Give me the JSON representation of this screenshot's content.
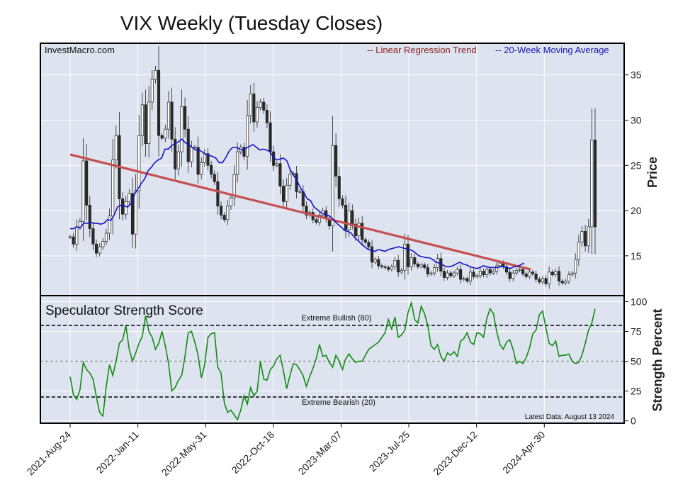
{
  "title": "VIX Weekly (Tuesday Closes)",
  "source": "InvestMacro.com",
  "legend": {
    "regression": "-- Linear Regression Trend",
    "ma": "-- 20-Week Moving Average"
  },
  "colors": {
    "panel_bg": "#dde3ef",
    "grid": "#ffffff",
    "regression": "#c65050",
    "ma": "#1414c8",
    "strength": "#138a13",
    "candle_down": "#2a2a2a",
    "candle_up": "#ffffff",
    "legend_regression": "#8b1a1a",
    "legend_ma": "#1414b4"
  },
  "chart_data": [
    {
      "type": "candlestick",
      "ylabel": "Price",
      "ylim": [
        10.6,
        38.5
      ],
      "yticks": [
        15,
        20,
        25,
        30,
        35
      ],
      "x_tick_labels": [
        "2021-Aug-24",
        "2022-Jan-11",
        "2022-May-31",
        "2022-Oct-18",
        "2023-Mar-07",
        "2023-Jul-25",
        "2023-Dec-12",
        "2024-Apr-30"
      ],
      "x_tick_weeks": [
        0,
        20,
        40,
        60,
        80,
        100,
        120,
        140
      ],
      "weeks_total": 156,
      "closes": [
        17.1,
        16.3,
        18.2,
        18.8,
        25.5,
        20.6,
        18.0,
        16.3,
        15.3,
        16.0,
        16.6,
        17.5,
        19.4,
        25.6,
        28.3,
        21.3,
        19.6,
        21.0,
        21.9,
        17.4,
        22.2,
        28.3,
        31.7,
        27.4,
        32.0,
        34.5,
        35.5,
        28.3,
        28.0,
        29.0,
        32.0,
        27.9,
        24.6,
        26.5,
        31.5,
        29.0,
        25.4,
        27.0,
        27.0,
        24.0,
        25.3,
        26.3,
        25.0,
        24.0,
        23.2,
        20.5,
        19.5,
        19.0,
        20.5,
        21.4,
        24.0,
        26.5,
        27.0,
        26.0,
        30.5,
        32.9,
        29.8,
        31.4,
        32.0,
        31.1,
        29.7,
        26.5,
        25.0,
        25.2,
        22.7,
        21.0,
        22.8,
        24.0,
        24.1,
        22.1,
        22.1,
        20.5,
        19.5,
        19.8,
        19.0,
        18.7,
        19.5,
        20.0,
        19.1,
        18.3,
        27.2,
        23.8,
        21.3,
        20.6,
        17.9,
        20.0,
        18.5,
        17.2,
        18.6,
        16.8,
        16.5,
        16.0,
        14.3,
        14.6,
        13.9,
        13.8,
        13.7,
        13.5,
        13.8,
        14.5,
        13.2,
        13.4,
        16.3,
        13.8,
        14.8,
        14.1,
        13.8,
        14.0,
        13.7,
        13.0,
        13.1,
        13.7,
        14.7,
        13.3,
        12.6,
        13.1,
        12.8,
        13.1,
        13.5,
        12.4,
        12.5,
        12.2,
        13.2,
        12.7,
        12.8,
        13.3,
        12.9,
        13.5,
        13.1,
        13.3,
        13.9,
        14.2,
        13.8,
        13.2,
        12.5,
        13.1,
        13.4,
        13.5,
        13.0,
        12.7,
        13.2,
        13.0,
        12.4,
        12.1,
        12.5,
        11.9,
        13.2,
        12.9,
        13.3,
        12.2,
        12.0,
        12.2,
        12.9,
        13.1,
        14.6,
        16.5,
        17.7,
        16.1,
        18.2,
        27.8,
        18.2
      ],
      "moving_average": [
        18.0,
        18.0,
        18.2,
        18.1,
        18.6,
        18.6,
        18.7,
        18.6,
        18.6,
        18.5,
        18.6,
        19.0,
        18.9,
        19.5,
        20.4,
        20.6,
        20.5,
        20.4,
        20.8,
        21.8,
        22.4,
        23.0,
        23.5,
        24.4,
        24.8,
        25.3,
        25.6,
        25.8,
        26.8,
        26.8,
        27.2,
        27.4,
        27.6,
        27.9,
        27.5,
        27.3,
        27.0,
        26.7,
        26.7,
        26.5,
        26.2,
        26.1,
        26.0,
        25.8,
        25.3,
        25.3,
        25.9,
        26.6,
        27.0,
        27.0,
        26.8,
        26.7,
        26.9,
        27.1,
        27.3,
        27.0,
        26.7,
        26.8,
        26.7,
        26.5,
        25.9,
        25.6,
        25.7,
        25.8,
        25.5,
        24.5,
        23.9,
        23.3,
        22.5,
        22.0,
        21.3,
        21.1,
        20.4,
        20.1,
        19.8,
        19.6,
        19.5,
        19.3,
        18.9,
        18.5,
        18.2,
        17.8,
        17.7,
        17.5,
        17.0,
        16.7,
        16.3,
        16.0,
        15.7,
        15.6,
        15.5,
        15.7,
        15.6,
        15.5,
        15.7,
        15.8,
        15.9,
        16.0,
        15.9,
        15.8,
        15.7,
        15.6,
        15.3,
        15.0,
        14.9,
        14.8,
        14.8,
        14.6,
        14.3,
        14.2,
        14.0,
        13.8,
        13.8,
        13.9,
        14.1,
        14.3,
        14.1,
        14.0,
        13.8,
        13.7,
        13.6,
        13.7,
        13.9,
        13.8,
        13.7,
        13.7,
        13.7,
        13.8,
        13.8,
        13.7,
        13.6,
        13.8,
        13.8,
        14.0,
        14.2
      ],
      "regression": {
        "start": [
          0,
          26.2
        ],
        "end": [
          136,
          13.5
        ]
      }
    },
    {
      "type": "line",
      "title": "Speculator Strength Score",
      "ylabel": "Strength Percent",
      "ylim": [
        -2,
        105
      ],
      "yticks": [
        0,
        25,
        50,
        75,
        100
      ],
      "ytick_labels": [
        "0",
        "25",
        "50",
        "75",
        "100"
      ],
      "reference_lines": [
        {
          "value": 80,
          "label": "Extreme Bullish (80)"
        },
        {
          "value": 50,
          "label": ""
        },
        {
          "value": 20,
          "label": "Extreme Bearish (20)"
        }
      ],
      "note": "Latest Data: August 13 2024",
      "values": [
        37,
        22,
        18,
        26,
        49,
        43,
        40,
        35,
        20,
        7,
        4,
        29,
        47,
        38,
        50,
        65,
        68,
        80,
        60,
        50,
        57,
        65,
        71,
        88,
        75,
        70,
        60,
        65,
        75,
        63,
        48,
        25,
        28,
        34,
        38,
        54,
        74,
        75,
        66,
        55,
        36,
        47,
        70,
        73,
        74,
        45,
        40,
        15,
        7,
        9,
        5,
        1,
        9,
        21,
        14,
        28,
        21,
        25,
        50,
        35,
        34,
        43,
        46,
        52,
        55,
        42,
        27,
        38,
        48,
        47,
        43,
        38,
        29,
        37,
        44,
        52,
        64,
        54,
        55,
        49,
        45,
        55,
        50,
        43,
        52,
        56,
        52,
        49,
        50,
        50,
        55,
        60,
        62,
        64,
        66,
        70,
        74,
        85,
        77,
        87,
        70,
        72,
        76,
        91,
        99,
        85,
        82,
        96,
        90,
        80,
        63,
        60,
        64,
        54,
        50,
        57,
        55,
        58,
        54,
        67,
        69,
        74,
        66,
        64,
        74,
        73,
        70,
        86,
        94,
        90,
        75,
        64,
        60,
        66,
        68,
        60,
        48,
        50,
        48,
        53,
        61,
        73,
        76,
        89,
        92,
        78,
        65,
        63,
        67,
        54,
        55,
        55,
        56,
        50,
        48,
        49,
        55,
        65,
        76,
        82,
        94
      ]
    }
  ]
}
